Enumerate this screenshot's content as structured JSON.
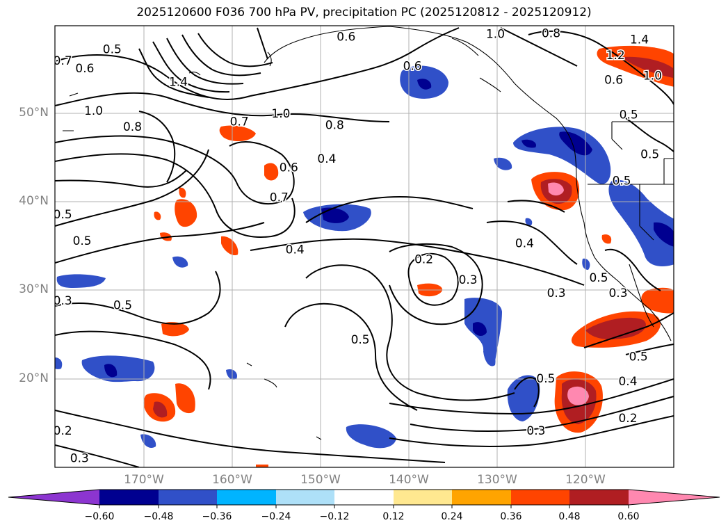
{
  "title": "2025120600 F036 700 hPa PV, precipitation PC (2025120812 - 2025120912)",
  "map": {
    "lat_labels": [
      "50°N",
      "40°N",
      "30°N",
      "20°N"
    ],
    "lon_labels": [
      "170°W",
      "160°W",
      "150°W",
      "140°W",
      "130°W",
      "120°W"
    ],
    "gridlines": true
  },
  "contour_labels": [
    {
      "text": "0.7",
      "lon": -179.2,
      "lat": 56.0
    },
    {
      "text": "0.6",
      "lon": -176.7,
      "lat": 55.1
    },
    {
      "text": "0.5",
      "lon": -173.6,
      "lat": 57.3
    },
    {
      "text": "1.4",
      "lon": -166.1,
      "lat": 53.6
    },
    {
      "text": "1.0",
      "lon": -175.7,
      "lat": 50.3
    },
    {
      "text": "0.8",
      "lon": -171.3,
      "lat": 48.5
    },
    {
      "text": "0.6",
      "lon": -147.1,
      "lat": 58.7
    },
    {
      "text": "0.6",
      "lon": -139.6,
      "lat": 55.4
    },
    {
      "text": "0.7",
      "lon": -159.2,
      "lat": 49.1
    },
    {
      "text": "1.0",
      "lon": -154.5,
      "lat": 50.0
    },
    {
      "text": "0.8",
      "lon": -148.4,
      "lat": 48.7
    },
    {
      "text": "0.4",
      "lon": -149.3,
      "lat": 44.9
    },
    {
      "text": "0.6",
      "lon": -153.6,
      "lat": 43.9
    },
    {
      "text": "0.7",
      "lon": -154.7,
      "lat": 40.5
    },
    {
      "text": "1.0",
      "lon": -130.2,
      "lat": 59.0
    },
    {
      "text": "0.8",
      "lon": -123.9,
      "lat": 59.1
    },
    {
      "text": "1.2",
      "lon": -116.6,
      "lat": 56.6
    },
    {
      "text": "1.4",
      "lon": -113.9,
      "lat": 58.4
    },
    {
      "text": "0.6",
      "lon": -116.8,
      "lat": 53.8
    },
    {
      "text": "1.0",
      "lon": -112.4,
      "lat": 54.3
    },
    {
      "text": "0.5",
      "lon": -115.1,
      "lat": 49.9
    },
    {
      "text": "0.5",
      "lon": -112.7,
      "lat": 45.4
    },
    {
      "text": "0.5",
      "lon": -115.9,
      "lat": 42.4
    },
    {
      "text": "0.5",
      "lon": -179.2,
      "lat": 38.6
    },
    {
      "text": "0.5",
      "lon": -177.0,
      "lat": 35.6
    },
    {
      "text": "0.4",
      "lon": -152.9,
      "lat": 34.6
    },
    {
      "text": "0.3",
      "lon": -179.2,
      "lat": 28.8
    },
    {
      "text": "0.5",
      "lon": -172.4,
      "lat": 28.3
    },
    {
      "text": "0.2",
      "lon": -138.3,
      "lat": 33.5
    },
    {
      "text": "0.3",
      "lon": -133.3,
      "lat": 31.2
    },
    {
      "text": "0.4",
      "lon": -126.9,
      "lat": 35.3
    },
    {
      "text": "0.3",
      "lon": -123.3,
      "lat": 29.7
    },
    {
      "text": "0.5",
      "lon": -118.5,
      "lat": 31.4
    },
    {
      "text": "0.3",
      "lon": -116.3,
      "lat": 29.7
    },
    {
      "text": "0.5",
      "lon": -145.5,
      "lat": 24.4
    },
    {
      "text": "0.5",
      "lon": -114.0,
      "lat": 22.5
    },
    {
      "text": "0.5",
      "lon": -124.5,
      "lat": 20.0
    },
    {
      "text": "0.4",
      "lon": -115.2,
      "lat": 19.7
    },
    {
      "text": "0.2",
      "lon": -115.2,
      "lat": 15.5
    },
    {
      "text": "0.3",
      "lon": -125.6,
      "lat": 14.1
    },
    {
      "text": "0.2",
      "lon": -179.2,
      "lat": 14.1
    },
    {
      "text": "0.3",
      "lon": -177.3,
      "lat": 11.0
    }
  ],
  "colorbar": {
    "ticks": [
      "−0.60",
      "−0.48",
      "−0.36",
      "−0.24",
      "−0.12",
      "0.12",
      "0.24",
      "0.36",
      "0.48",
      "0.60"
    ],
    "colors": [
      "#8c35d0",
      "#000090",
      "#3050c8",
      "#00b4ff",
      "#aee0f8",
      "#ffffff",
      "#ffe890",
      "#ffa400",
      "#ff4400",
      "#b01e22",
      "#ff88b0"
    ]
  }
}
